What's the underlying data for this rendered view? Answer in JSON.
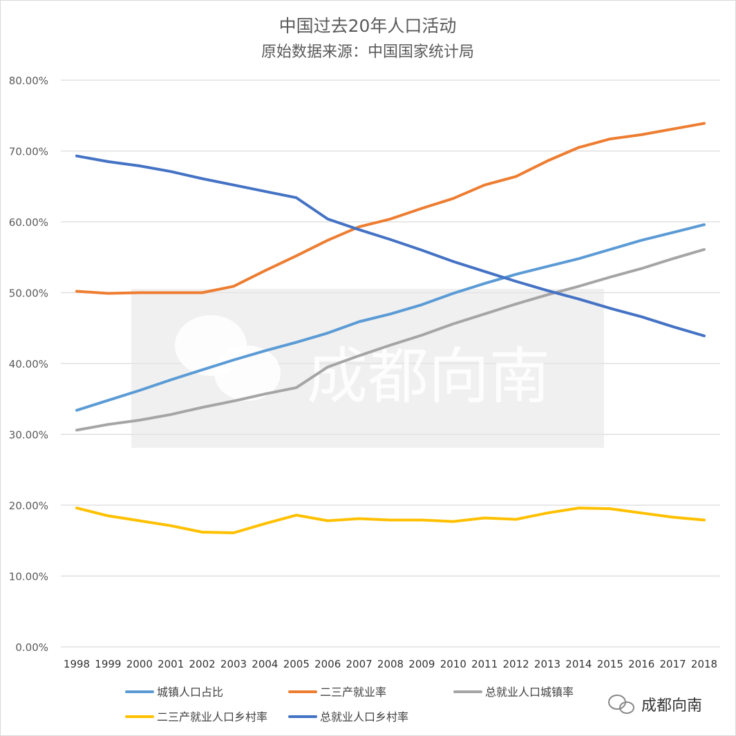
{
  "chart_data": {
    "type": "line",
    "title": "中国过去20年人口活动",
    "subtitle": "原始数据来源：中国国家统计局",
    "x": [
      "1998",
      "1999",
      "2000",
      "2001",
      "2002",
      "2003",
      "2004",
      "2005",
      "2006",
      "2007",
      "2008",
      "2009",
      "2010",
      "2011",
      "2012",
      "2013",
      "2014",
      "2015",
      "2016",
      "2017",
      "2018"
    ],
    "ylim": [
      0,
      0.8
    ],
    "yticks": [
      0,
      0.1,
      0.2,
      0.3,
      0.4,
      0.5,
      0.6,
      0.7,
      0.8
    ],
    "ytick_labels": [
      "0.00%",
      "10.00%",
      "20.00%",
      "30.00%",
      "40.00%",
      "50.00%",
      "60.00%",
      "70.00%",
      "80.00%"
    ],
    "grid": true,
    "legend_position": "bottom",
    "series": [
      {
        "name": "城镇人口占比",
        "color": "#5b9bd5",
        "values": [
          0.334,
          0.348,
          0.362,
          0.377,
          0.391,
          0.405,
          0.418,
          0.43,
          0.443,
          0.459,
          0.47,
          0.483,
          0.499,
          0.513,
          0.526,
          0.537,
          0.548,
          0.561,
          0.574,
          0.585,
          0.596
        ]
      },
      {
        "name": "二三产就业率",
        "color": "#ed7d31",
        "values": [
          0.502,
          0.499,
          0.5,
          0.5,
          0.5,
          0.509,
          0.531,
          0.552,
          0.574,
          0.593,
          0.604,
          0.619,
          0.633,
          0.652,
          0.664,
          0.686,
          0.705,
          0.717,
          0.723,
          0.731,
          0.739
        ]
      },
      {
        "name": "总就业人口城镇率",
        "color": "#a5a5a5",
        "values": [
          0.306,
          0.314,
          0.32,
          0.328,
          0.338,
          0.347,
          0.357,
          0.366,
          0.395,
          0.411,
          0.426,
          0.44,
          0.456,
          0.47,
          0.484,
          0.497,
          0.509,
          0.522,
          0.534,
          0.548,
          0.561
        ]
      },
      {
        "name": "二三产就业人口乡村率",
        "color": "#ffc000",
        "values": [
          0.196,
          0.185,
          0.178,
          0.171,
          0.162,
          0.161,
          0.174,
          0.186,
          0.178,
          0.181,
          0.179,
          0.179,
          0.177,
          0.182,
          0.18,
          0.189,
          0.196,
          0.195,
          0.189,
          0.183,
          0.179
        ]
      },
      {
        "name": "总就业人口乡村率",
        "color": "#4472c4",
        "values": [
          0.693,
          0.685,
          0.679,
          0.671,
          0.661,
          0.652,
          0.643,
          0.634,
          0.604,
          0.589,
          0.575,
          0.56,
          0.544,
          0.53,
          0.516,
          0.503,
          0.491,
          0.478,
          0.466,
          0.452,
          0.439
        ]
      }
    ]
  },
  "watermark": {
    "text": "成都向南",
    "icon": "wechat-logo-icon"
  }
}
